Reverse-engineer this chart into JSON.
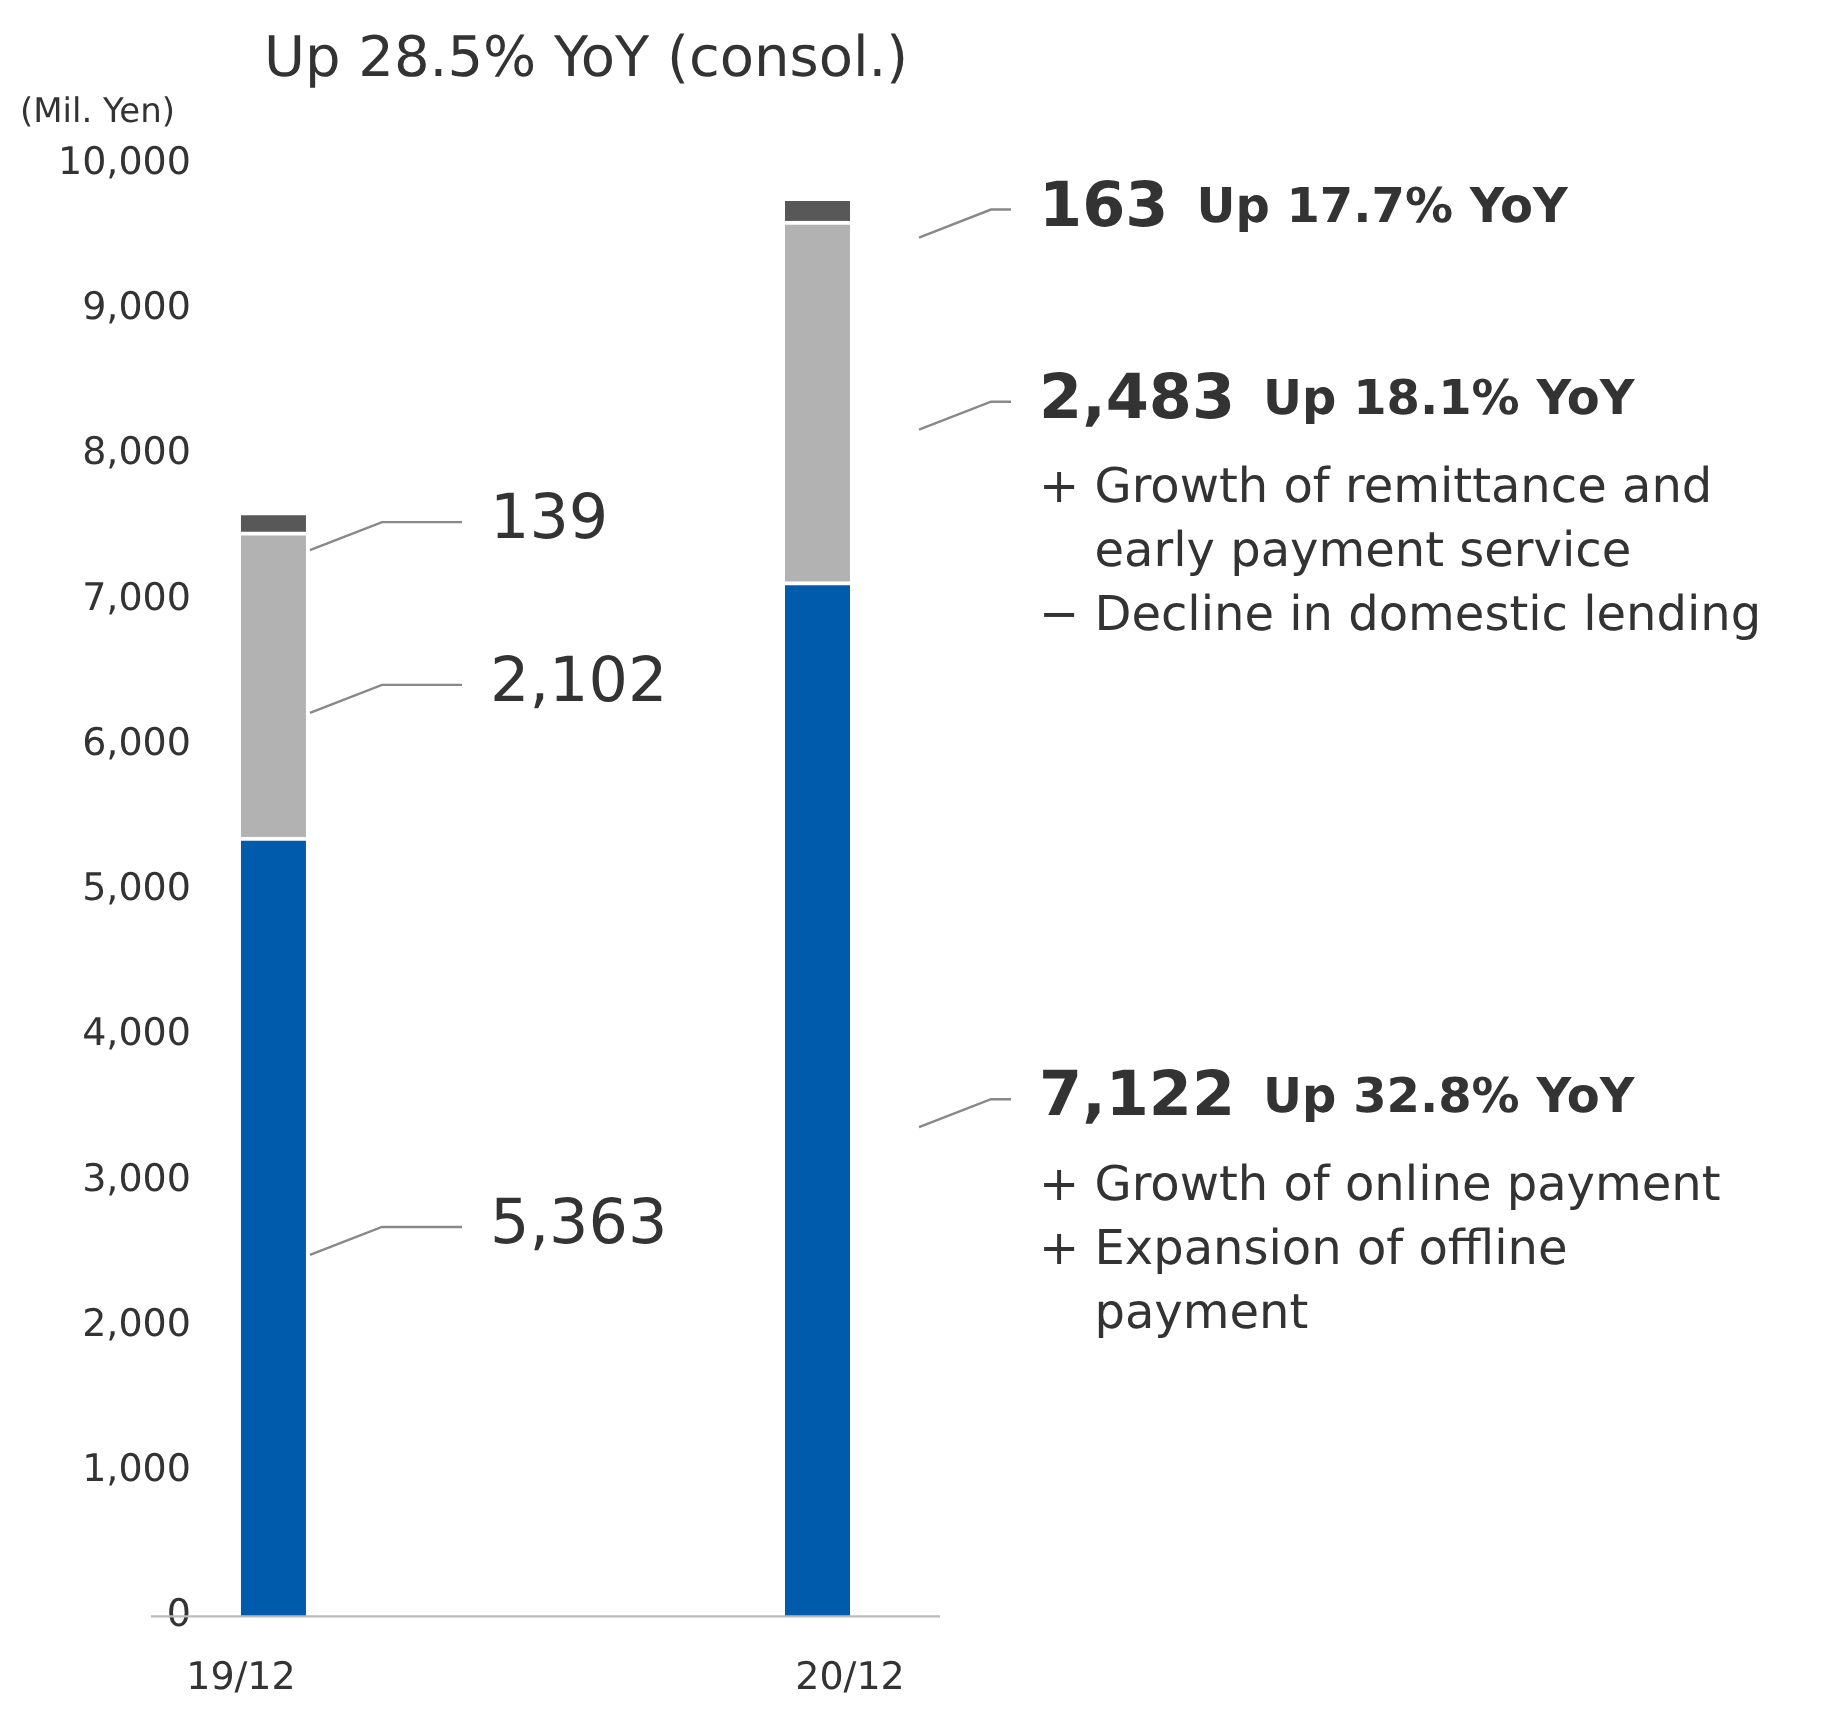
{
  "chart_data": {
    "type": "bar",
    "title": "Up 28.5% YoY (consol.)",
    "ylabel": "(Mil. Yen)",
    "categories": [
      "19/12",
      "20/12"
    ],
    "stacked": true,
    "legend": false,
    "grid": false,
    "ylim": [
      0,
      10000
    ],
    "yticks": [
      0,
      {
        "value": 1000,
        "label": "1,000"
      },
      {
        "value": 2000,
        "label": "2,000"
      },
      {
        "value": 3000,
        "label": "3,000"
      },
      {
        "value": 4000,
        "label": "4,000"
      },
      {
        "value": 5000,
        "label": "5,000"
      },
      {
        "value": 6000,
        "label": "6,000"
      },
      {
        "value": 7000,
        "label": "7,000"
      },
      {
        "value": 8000,
        "label": "8,000"
      },
      {
        "value": 9000,
        "label": "9,000"
      },
      {
        "value": 10000,
        "label": "10,000"
      }
    ],
    "series": [
      {
        "color": "#005bac",
        "values": [
          5363,
          7122
        ],
        "value_labels": [
          "5,363",
          "7,122"
        ]
      },
      {
        "color": "#b2b2b2",
        "values": [
          2102,
          2483
        ],
        "value_labels": [
          "2,102",
          "2,483"
        ]
      },
      {
        "color": "#585858",
        "values": [
          139,
          163
        ],
        "value_labels": [
          "139",
          "163"
        ]
      }
    ],
    "annotations": [
      "Up 17.7% YoY",
      "Up 18.1% YoY",
      "+ Growth of remittance and early payment service",
      "− Decline in domestic lending",
      "Up 32.8% YoY",
      "+ Growth of online payment",
      "+ Expansion of offline payment"
    ]
  }
}
